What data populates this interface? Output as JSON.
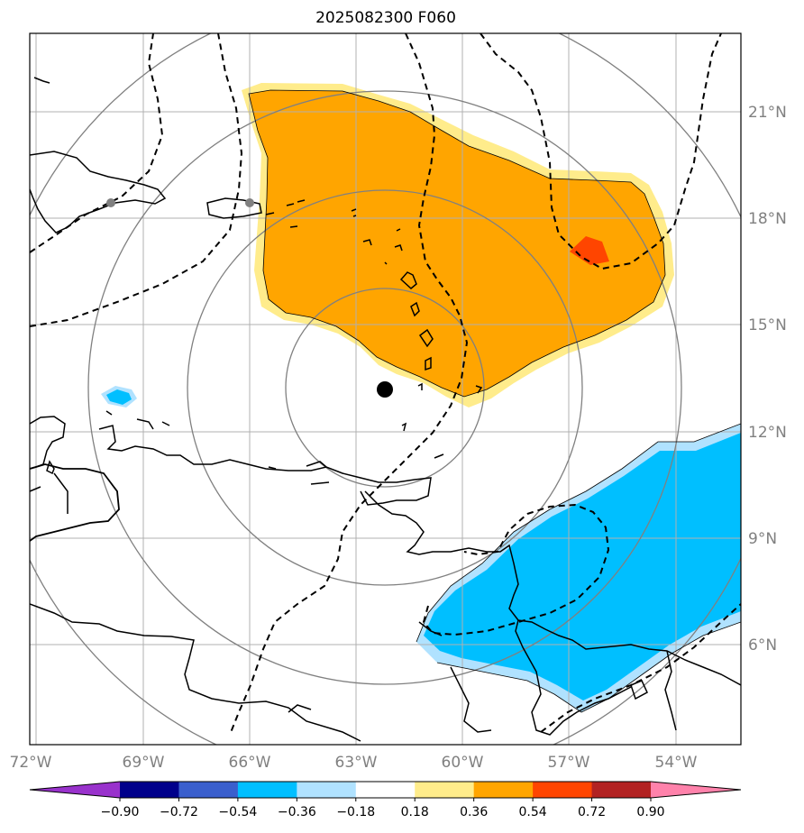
{
  "title": "2025082300 F060",
  "lon_labels": [
    "72°W",
    "69°W",
    "66°W",
    "63°W",
    "60°W",
    "57°W",
    "54°W"
  ],
  "lat_labels": [
    "21°N",
    "18°N",
    "15°N",
    "12°N",
    "9°N",
    "6°N"
  ],
  "colorbar": {
    "ticks": [
      "−0.90",
      "−0.72",
      "−0.54",
      "−0.36",
      "−0.18",
      "0.18",
      "0.36",
      "0.54",
      "0.72",
      "0.90"
    ],
    "colors": [
      "#9932cc",
      "#00008b",
      "#3a5fcd",
      "#00bfff",
      "#b0e2ff",
      "#ffffff",
      "#ffec8b",
      "#ffa500",
      "#ff4500",
      "#b22222",
      "#ff82ab"
    ]
  },
  "center_marker": {
    "lon": -62.0,
    "lat": 13.2,
    "color": "#000000"
  },
  "city_markers": [
    {
      "lon": -69.9,
      "lat": 18.5
    },
    {
      "lon": -66.1,
      "lat": 18.4
    }
  ]
}
